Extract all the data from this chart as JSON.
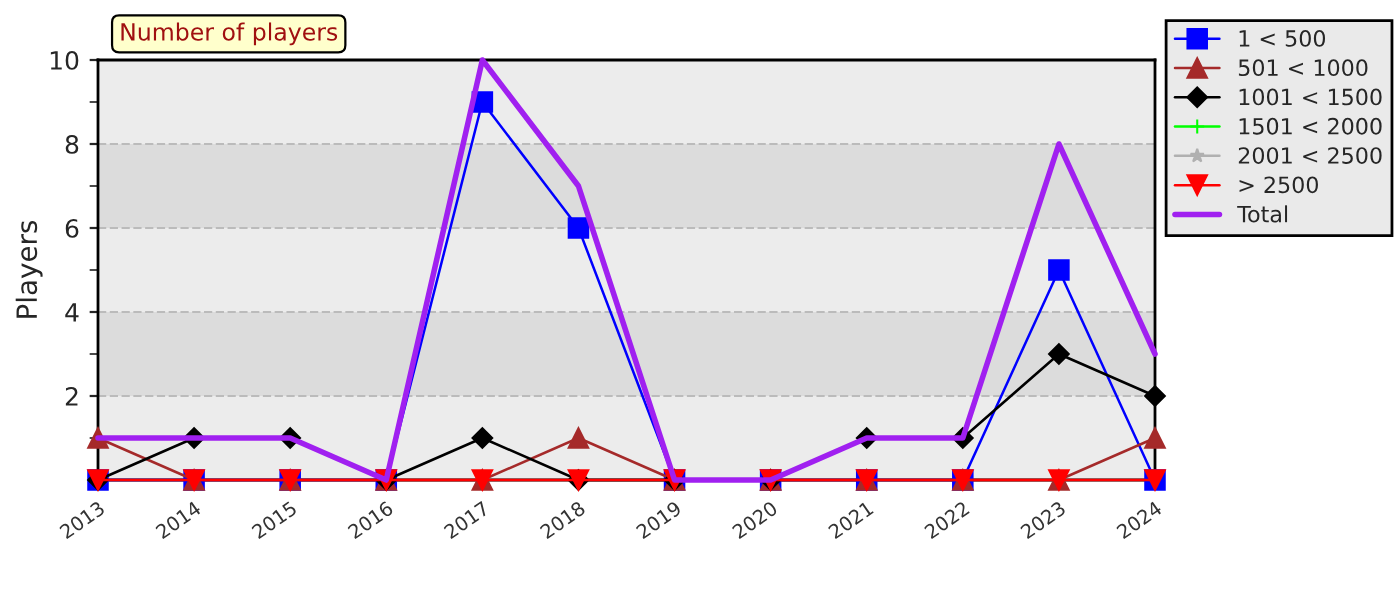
{
  "chart_data": {
    "type": "line",
    "title": "Number of players",
    "ylabel": "Players",
    "categories": [
      "2013",
      "2014",
      "2015",
      "2016",
      "2017",
      "2018",
      "2019",
      "2020",
      "2021",
      "2022",
      "2023",
      "2024"
    ],
    "series": [
      {
        "name": "1 < 500",
        "color": "#0000ff",
        "marker": "square",
        "values": [
          0,
          0,
          0,
          0,
          9,
          6,
          0,
          0,
          0,
          0,
          5,
          0
        ]
      },
      {
        "name": "501 < 1000",
        "color": "#a52a2a",
        "marker": "triangle",
        "values": [
          1,
          0,
          0,
          0,
          0,
          1,
          0,
          0,
          0,
          0,
          0,
          1
        ]
      },
      {
        "name": "1001 < 1500",
        "color": "#000000",
        "marker": "diamond",
        "values": [
          0,
          1,
          1,
          0,
          1,
          0,
          0,
          0,
          1,
          1,
          3,
          2
        ]
      },
      {
        "name": "1501 < 2000",
        "color": "#00ff00",
        "marker": "cross",
        "values": [
          null,
          null,
          null,
          null,
          null,
          null,
          null,
          null,
          null,
          null,
          null,
          null
        ]
      },
      {
        "name": "2001 < 2500",
        "color": "#b0b0b0",
        "marker": "star",
        "values": [
          null,
          null,
          null,
          null,
          null,
          null,
          null,
          null,
          null,
          null,
          null,
          null
        ]
      },
      {
        "name": "> 2500",
        "color": "#ff0000",
        "marker": "triangle_down",
        "values": [
          0,
          0,
          0,
          0,
          0,
          0,
          0,
          0,
          0,
          0,
          0,
          0
        ]
      },
      {
        "name": "Total",
        "color": "#a020f0",
        "marker": "none",
        "values": [
          1,
          1,
          1,
          0,
          10,
          7,
          0,
          0,
          1,
          1,
          8,
          3
        ]
      }
    ],
    "ylim": [
      0,
      10
    ],
    "yticks": [
      2,
      4,
      6,
      8,
      10
    ],
    "grid": "y",
    "legend": "top right",
    "bands": [
      {
        "axis": "y",
        "from": 2,
        "to": 4,
        "color": "#dcdcdc"
      },
      {
        "axis": "y",
        "from": 6,
        "to": 8,
        "color": "#dcdcdc"
      }
    ]
  }
}
